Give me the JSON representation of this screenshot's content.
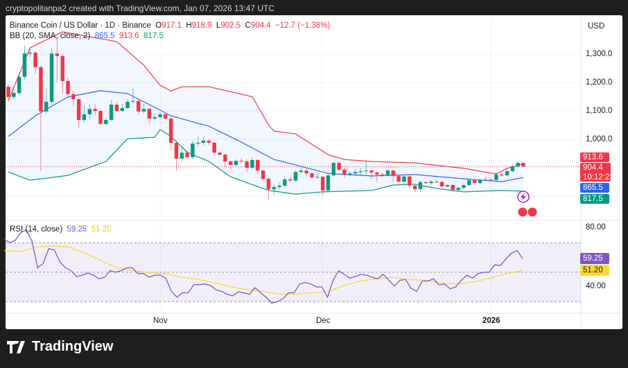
{
  "header": {
    "attribution": "cryptopolitanpa2 created with TradingView.com, Jan 07, 2026 13:47 UTC"
  },
  "legend": {
    "symbol": "Binance Coin / US Dollar · 1D · Binance",
    "o_label": "O",
    "o": "917.1",
    "h_label": "H",
    "h": "918.9",
    "l_label": "L",
    "l": "902.5",
    "c_label": "C",
    "c": "904.4",
    "change": "−12.7 (−1.38%)",
    "bb_title": "BB (20, SMA, close, 2)",
    "bb_mid": "865.5",
    "bb_upper": "913.6",
    "bb_lower": "817.5",
    "rsi_title": "RSI (14, close)",
    "rsi_value": "59.25",
    "rsi_ma": "51.20"
  },
  "price_scale": {
    "currency": "USD",
    "ticks": [
      "1,300.0",
      "1,200.0",
      "1,100.0",
      "1,000.0"
    ],
    "labels": {
      "upper": "913.6",
      "last": "904.4",
      "countdown": "10:12:23",
      "mid": "865.5",
      "lower": "817.5"
    }
  },
  "rsi_scale": {
    "ticks": [
      "80.00",
      "40.00"
    ],
    "labels": {
      "rsi": "59.25",
      "ma": "51.20"
    }
  },
  "time_axis": {
    "ticks": [
      "Nov",
      "Dec",
      "2026"
    ]
  },
  "brand": {
    "name": "TradingView"
  },
  "colors": {
    "up": "#089981",
    "down": "#f23645",
    "bb_upper": "#f23645",
    "bb_mid": "#2962ff",
    "bb_lower": "#089981",
    "rsi": "#7e57c2",
    "rsi_ma": "#fdd835"
  },
  "chart_data": [
    {
      "type": "candlestick",
      "title": "Binance Coin / US Dollar · 1D · Binance",
      "ylabel": "USD",
      "ylim": [
        760,
        1400
      ],
      "x_ticks": [
        "Nov",
        "Dec",
        "2026"
      ],
      "grid": true,
      "ohlc": [
        [
          1185,
          1195,
          1140,
          1149
        ],
        [
          1149,
          1175,
          1140,
          1163
        ],
        [
          1163,
          1230,
          1155,
          1220
        ],
        [
          1220,
          1330,
          1210,
          1302
        ],
        [
          1302,
          1320,
          1290,
          1305
        ],
        [
          1305,
          1310,
          1230,
          1254
        ],
        [
          1254,
          1260,
          888,
          1098
        ],
        [
          1098,
          1180,
          1090,
          1132
        ],
        [
          1132,
          1320,
          1120,
          1302
        ],
        [
          1302,
          1360,
          1200,
          1293
        ],
        [
          1293,
          1300,
          1160,
          1205
        ],
        [
          1205,
          1215,
          1150,
          1159
        ],
        [
          1159,
          1170,
          1120,
          1141
        ],
        [
          1141,
          1150,
          1040,
          1068
        ],
        [
          1068,
          1120,
          1060,
          1088
        ],
        [
          1088,
          1120,
          1070,
          1107
        ],
        [
          1107,
          1125,
          1085,
          1100
        ],
        [
          1100,
          1105,
          1050,
          1054
        ],
        [
          1054,
          1075,
          1050,
          1068
        ],
        [
          1068,
          1140,
          1065,
          1122
        ],
        [
          1122,
          1130,
          1095,
          1100
        ],
        [
          1100,
          1125,
          1095,
          1110
        ],
        [
          1110,
          1140,
          1105,
          1132
        ],
        [
          1132,
          1178,
          1125,
          1135
        ],
        [
          1135,
          1140,
          1085,
          1098
        ],
        [
          1098,
          1125,
          1090,
          1107
        ],
        [
          1107,
          1110,
          1055,
          1073
        ],
        [
          1073,
          1090,
          1065,
          1078
        ],
        [
          1078,
          1095,
          1075,
          1088
        ],
        [
          1088,
          1092,
          1065,
          1073
        ],
        [
          1073,
          1080,
          960,
          988
        ],
        [
          988,
          995,
          890,
          932
        ],
        [
          932,
          970,
          920,
          953
        ],
        [
          953,
          960,
          930,
          937
        ],
        [
          937,
          995,
          930,
          985
        ],
        [
          985,
          1010,
          975,
          988
        ],
        [
          988,
          1005,
          980,
          995
        ],
        [
          995,
          1000,
          980,
          988
        ],
        [
          988,
          990,
          945,
          953
        ],
        [
          953,
          958,
          940,
          946
        ],
        [
          946,
          950,
          905,
          922
        ],
        [
          922,
          925,
          895,
          910
        ],
        [
          910,
          930,
          905,
          924
        ],
        [
          924,
          935,
          915,
          922
        ],
        [
          922,
          930,
          885,
          900
        ],
        [
          900,
          935,
          895,
          927
        ],
        [
          927,
          932,
          880,
          890
        ],
        [
          890,
          892,
          855,
          861
        ],
        [
          861,
          865,
          788,
          824
        ],
        [
          824,
          840,
          805,
          832
        ],
        [
          832,
          848,
          825,
          837
        ],
        [
          837,
          870,
          830,
          859
        ],
        [
          859,
          868,
          848,
          855
        ],
        [
          855,
          890,
          850,
          885
        ],
        [
          885,
          898,
          880,
          890
        ],
        [
          890,
          900,
          870,
          880
        ],
        [
          880,
          885,
          860,
          866
        ],
        [
          866,
          885,
          860,
          868
        ],
        [
          868,
          870,
          803,
          820
        ],
        [
          820,
          880,
          815,
          873
        ],
        [
          873,
          920,
          870,
          917
        ],
        [
          917,
          922,
          885,
          893
        ],
        [
          893,
          900,
          865,
          876
        ],
        [
          876,
          888,
          870,
          880
        ],
        [
          880,
          895,
          870,
          885
        ],
        [
          885,
          900,
          875,
          888
        ],
        [
          888,
          922,
          878,
          890
        ],
        [
          890,
          895,
          860,
          883
        ],
        [
          883,
          888,
          850,
          876
        ],
        [
          876,
          882,
          865,
          875
        ],
        [
          875,
          895,
          870,
          890
        ],
        [
          890,
          893,
          850,
          871
        ],
        [
          871,
          875,
          840,
          851
        ],
        [
          851,
          872,
          845,
          869
        ],
        [
          869,
          872,
          830,
          837
        ],
        [
          837,
          842,
          815,
          825
        ],
        [
          825,
          855,
          815,
          849
        ],
        [
          849,
          852,
          842,
          846
        ],
        [
          846,
          856,
          840,
          851
        ],
        [
          851,
          858,
          846,
          850
        ],
        [
          850,
          852,
          830,
          834
        ],
        [
          834,
          842,
          830,
          839
        ],
        [
          839,
          842,
          815,
          822
        ],
        [
          822,
          832,
          815,
          829
        ],
        [
          829,
          842,
          825,
          839
        ],
        [
          839,
          862,
          835,
          856
        ],
        [
          856,
          860,
          840,
          846
        ],
        [
          846,
          860,
          842,
          856
        ],
        [
          856,
          868,
          852,
          858
        ],
        [
          858,
          864,
          852,
          857
        ],
        [
          857,
          885,
          855,
          876
        ],
        [
          876,
          880,
          868,
          873
        ],
        [
          873,
          895,
          870,
          888
        ],
        [
          888,
          912,
          885,
          905
        ],
        [
          905,
          922,
          900,
          917
        ],
        [
          917.1,
          918.9,
          902.5,
          904.4
        ]
      ],
      "bollinger": {
        "name": "BB (20, SMA, close, 2)",
        "upper": [
          [
            0,
            1135
          ],
          [
            4,
            1322
          ],
          [
            10,
            1378
          ],
          [
            20,
            1344
          ],
          [
            25,
            1261
          ],
          [
            28,
            1190
          ],
          [
            30,
            1170
          ],
          [
            32,
            1185
          ],
          [
            37,
            1185
          ],
          [
            45,
            1150
          ],
          [
            48,
            1051
          ],
          [
            49,
            1029
          ],
          [
            53,
            1019
          ],
          [
            59,
            946
          ],
          [
            62,
            929
          ],
          [
            67,
            922
          ],
          [
            75,
            917
          ],
          [
            84,
            898
          ],
          [
            90,
            878
          ],
          [
            92,
            898
          ],
          [
            95,
            913.6
          ]
        ],
        "middle": [
          [
            0,
            1010
          ],
          [
            5,
            1083
          ],
          [
            11,
            1149
          ],
          [
            17,
            1171
          ],
          [
            22,
            1161
          ],
          [
            25,
            1132
          ],
          [
            30,
            1083
          ],
          [
            35,
            1056
          ],
          [
            37,
            1046
          ],
          [
            43,
            990
          ],
          [
            49,
            929
          ],
          [
            59,
            880
          ],
          [
            67,
            871
          ],
          [
            75,
            876
          ],
          [
            84,
            861
          ],
          [
            91,
            851
          ],
          [
            95,
            865.5
          ]
        ],
        "lower": [
          [
            0,
            885
          ],
          [
            4,
            856
          ],
          [
            11,
            873
          ],
          [
            18,
            922
          ],
          [
            22,
            1002
          ],
          [
            27,
            1007
          ],
          [
            28,
            1034
          ],
          [
            30,
            1010
          ],
          [
            33,
            954
          ],
          [
            37,
            922
          ],
          [
            41,
            868
          ],
          [
            48,
            820
          ],
          [
            53,
            807
          ],
          [
            58,
            815
          ],
          [
            67,
            820
          ],
          [
            71,
            839
          ],
          [
            75,
            842
          ],
          [
            79,
            827
          ],
          [
            84,
            815
          ],
          [
            91,
            820
          ],
          [
            95,
            817.5
          ]
        ]
      },
      "last_price": 904.4
    },
    {
      "type": "line",
      "title": "RSI (14, close)",
      "ylim": [
        22,
        88
      ],
      "y_ticks": [
        80,
        40
      ],
      "bands": {
        "upper": 70,
        "middle": 50,
        "lower": 30
      },
      "series": [
        {
          "name": "RSI",
          "values": [
            72.5,
            70,
            71.7,
            77,
            78.7,
            71,
            53,
            56,
            66,
            65,
            57,
            53,
            51,
            47,
            48,
            49.4,
            48,
            45.5,
            46.6,
            51,
            50,
            51,
            53,
            53,
            49,
            49,
            46.6,
            48,
            48,
            46,
            37,
            33,
            36,
            36,
            41.4,
            41.6,
            42,
            41,
            38,
            37,
            35,
            34,
            36.7,
            36,
            35,
            39.5,
            36,
            33,
            29,
            30,
            32,
            36,
            36,
            42,
            43,
            42,
            40,
            40,
            33,
            44.5,
            51,
            48.5,
            46,
            47,
            48.5,
            48,
            46.6,
            45.5,
            48.6,
            44.5,
            40.6,
            44.5,
            45,
            39,
            37,
            44,
            44,
            45.5,
            41.4,
            42,
            38.7,
            40,
            44.5,
            48,
            46,
            49,
            50,
            50,
            55,
            54.5,
            59,
            63,
            64.6,
            59.25
          ]
        },
        {
          "name": "RSI-based MA",
          "values": [
            64.6,
            64,
            67,
            67.8,
            67,
            63,
            57.6,
            53,
            51,
            49.7,
            49,
            46.6,
            45,
            42.7,
            40,
            38,
            37,
            35,
            35,
            36,
            37,
            41,
            44,
            45.5,
            46.6,
            45,
            44.5,
            42.7,
            42,
            43.5,
            46,
            49,
            51.2
          ]
        }
      ]
    }
  ]
}
